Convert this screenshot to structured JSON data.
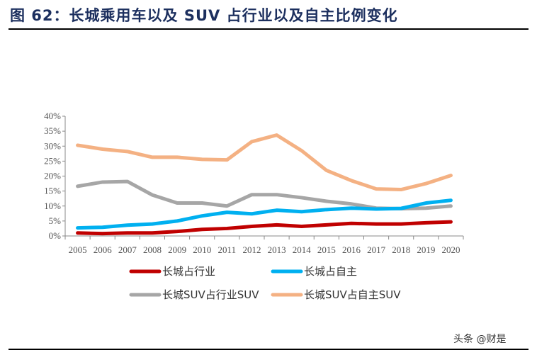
{
  "title": "图 62：长城乘用车以及 SUV 占行业以及自主比例变化",
  "watermark": "头条 @财是",
  "chart_data": {
    "type": "line",
    "title": "",
    "xlabel": "",
    "ylabel": "",
    "categories": [
      "2005",
      "2006",
      "2007",
      "2008",
      "2009",
      "2010",
      "2011",
      "2012",
      "2013",
      "2014",
      "2015",
      "2016",
      "2017",
      "2018",
      "2019",
      "2020"
    ],
    "ylim": [
      0,
      40
    ],
    "yticks": [
      "0%",
      "5%",
      "10%",
      "15%",
      "20%",
      "25%",
      "30%",
      "35%",
      "40%"
    ],
    "grid": false,
    "legend_position": "bottom",
    "series": [
      {
        "name": "长城占行业",
        "color": "#c00000",
        "values": [
          1.0,
          0.8,
          1.0,
          1.0,
          1.5,
          2.2,
          2.5,
          3.2,
          3.7,
          3.2,
          3.7,
          4.2,
          4.0,
          4.0,
          4.4,
          4.7
        ]
      },
      {
        "name": "长城占自主",
        "color": "#00b0f0",
        "values": [
          2.7,
          2.9,
          3.6,
          4.0,
          5.0,
          6.7,
          7.9,
          7.4,
          8.6,
          8.1,
          8.8,
          9.3,
          9.0,
          9.2,
          11.0,
          11.9
        ]
      },
      {
        "name": "长城SUV占行业SUV",
        "color": "#a6a6a6",
        "values": [
          16.6,
          18.0,
          18.2,
          13.7,
          11.0,
          11.0,
          10.0,
          13.8,
          13.8,
          12.8,
          11.6,
          10.7,
          9.3,
          9.1,
          9.3,
          10.0
        ]
      },
      {
        "name": "长城SUV占自主SUV",
        "color": "#f4b183",
        "values": [
          30.3,
          29.0,
          28.2,
          26.3,
          26.3,
          25.6,
          25.4,
          31.5,
          33.7,
          28.5,
          21.9,
          18.5,
          15.7,
          15.5,
          17.5,
          20.2
        ]
      }
    ]
  }
}
